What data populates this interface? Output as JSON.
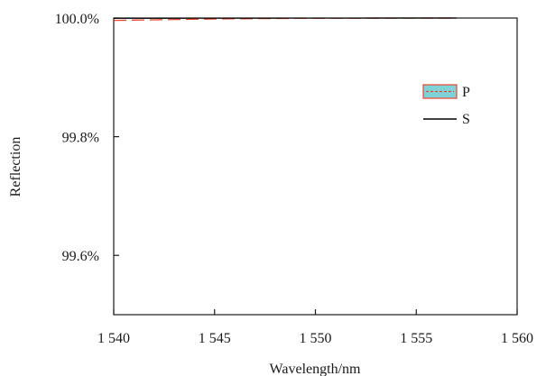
{
  "chart_data": {
    "type": "line",
    "title": "",
    "xlabel": "Wavelength/nm",
    "ylabel": "Reflection",
    "xlim": [
      1540,
      1560
    ],
    "ylim": [
      99.5,
      100.0
    ],
    "x_ticks": [
      1540,
      1545,
      1550,
      1555,
      1560
    ],
    "x_tick_labels": [
      "1 540",
      "1 545",
      "1 550",
      "1 555",
      "1 560"
    ],
    "y_ticks": [
      99.6,
      99.8,
      100.0
    ],
    "y_tick_labels": [
      "99.6%",
      "99.8%",
      "100.0%"
    ],
    "grid": false,
    "legend_position": "right",
    "series": [
      {
        "name": "P",
        "color": "#e8472f",
        "fill_color": "#7fd3d6",
        "style": "dashed",
        "x": [
          1540,
          1541,
          1542,
          1543,
          1544,
          1545,
          1546,
          1547,
          1548,
          1549,
          1550,
          1551,
          1552,
          1553,
          1554,
          1555,
          1556,
          1557
        ],
        "y": [
          99.996,
          99.9965,
          99.997,
          99.9975,
          99.998,
          99.9984,
          99.9987,
          99.999,
          99.9992,
          99.9994,
          99.9995,
          99.9996,
          99.9997,
          99.9997,
          99.9998,
          99.9998,
          99.9999,
          99.9999
        ]
      },
      {
        "name": "S",
        "color": "#000000",
        "style": "solid",
        "x": [
          1540,
          1541,
          1542,
          1543,
          1544,
          1545,
          1546,
          1547,
          1548,
          1549,
          1550,
          1551,
          1552,
          1553,
          1554,
          1555,
          1556,
          1557
        ],
        "y": [
          99.9995,
          99.9995,
          99.9996,
          99.9996,
          99.9997,
          99.9997,
          99.9998,
          99.9998,
          99.9998,
          99.9999,
          99.9999,
          99.9999,
          99.9999,
          100.0,
          100.0,
          100.0,
          100.0,
          100.0
        ]
      }
    ]
  }
}
